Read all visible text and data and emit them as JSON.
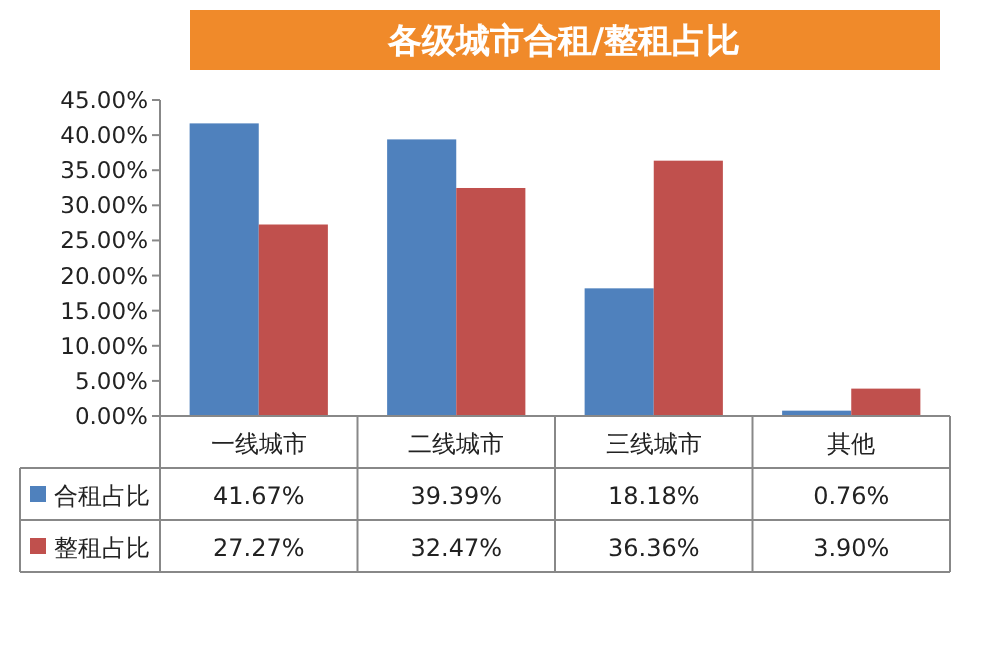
{
  "chart_data": {
    "type": "bar",
    "title": "各级城市合租/整租占比",
    "categories": [
      "一线城市",
      "二线城市",
      "三线城市",
      "其他"
    ],
    "series": [
      {
        "name": "合租占比",
        "color": "#4f81bd",
        "values": [
          41.67,
          39.39,
          18.18,
          0.76
        ],
        "value_labels": [
          "41.67%",
          "39.39%",
          "18.18%",
          "0.76%"
        ]
      },
      {
        "name": "整租占比",
        "color": "#c0504d",
        "values": [
          27.27,
          32.47,
          36.36,
          3.9
        ],
        "value_labels": [
          "27.27%",
          "32.47%",
          "36.36%",
          "3.90%"
        ]
      }
    ],
    "ylim": [
      0,
      45
    ],
    "yticks": [
      {
        "value": 0,
        "label": "0.00%"
      },
      {
        "value": 5,
        "label": "5.00%"
      },
      {
        "value": 10,
        "label": "10.00%"
      },
      {
        "value": 15,
        "label": "15.00%"
      },
      {
        "value": 20,
        "label": "20.00%"
      },
      {
        "value": 25,
        "label": "25.00%"
      },
      {
        "value": 30,
        "label": "30.00%"
      },
      {
        "value": 35,
        "label": "35.00%"
      },
      {
        "value": 40,
        "label": "40.00%"
      },
      {
        "value": 45,
        "label": "45.00%"
      }
    ],
    "legend": "bottom"
  }
}
